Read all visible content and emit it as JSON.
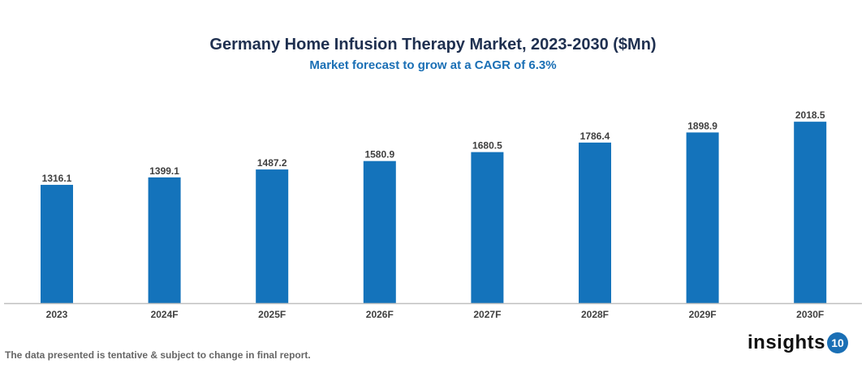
{
  "chart_data": {
    "type": "bar",
    "title": "Germany Home Infusion Therapy Market, 2023-2030 ($Mn)",
    "subtitle": "Market forecast to grow at a CAGR of 6.3%",
    "categories": [
      "2023",
      "2024F",
      "2025F",
      "2026F",
      "2027F",
      "2028F",
      "2029F",
      "2030F"
    ],
    "values": [
      1316.1,
      1399.1,
      1487.2,
      1580.9,
      1680.5,
      1786.4,
      1898.9,
      2018.5
    ],
    "xlabel": "",
    "ylabel": "",
    "ylim": [
      0,
      2100
    ],
    "grid": false,
    "bar_color": "#1473bb",
    "data_labels": true
  },
  "footer": {
    "note": "The data presented is tentative & subject to change in final report.",
    "logo_text": "insights",
    "logo_badge": "10"
  }
}
